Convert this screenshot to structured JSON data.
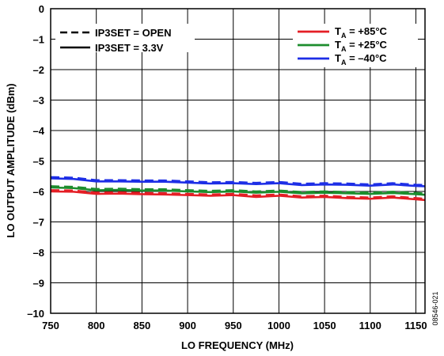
{
  "chart_data": {
    "type": "line",
    "title": "",
    "xlabel": "LO FREQUENCY (MHz)",
    "ylabel": "LO OUTPUT AMPLITUDE (dBm)",
    "xlim": [
      750,
      1160
    ],
    "ylim": [
      -10,
      0
    ],
    "x_ticks": [
      750,
      800,
      850,
      900,
      950,
      1000,
      1050,
      1100,
      1150
    ],
    "y_ticks": [
      0,
      -1,
      -2,
      -3,
      -4,
      -5,
      -6,
      -7,
      -8,
      -9,
      -10
    ],
    "x_tick_labels": [
      "750",
      "800",
      "850",
      "900",
      "950",
      "1000",
      "1050",
      "1100",
      "1150"
    ],
    "y_tick_labels": [
      "0",
      "–1",
      "–2",
      "–3",
      "–4",
      "–5",
      "–6",
      "–7",
      "–8",
      "–9",
      "–10"
    ],
    "grid": true,
    "x": [
      750,
      775,
      800,
      825,
      850,
      875,
      900,
      925,
      950,
      975,
      1000,
      1025,
      1050,
      1075,
      1100,
      1125,
      1150,
      1160
    ],
    "series": [
      {
        "name": "+85°C",
        "color": "#e41e25",
        "style": "dashed",
        "values": [
          -5.96,
          -5.97,
          -6.04,
          -6.03,
          -6.05,
          -6.06,
          -6.08,
          -6.1,
          -6.08,
          -6.13,
          -6.1,
          -6.16,
          -6.14,
          -6.18,
          -6.2,
          -6.16,
          -6.22,
          -6.24
        ]
      },
      {
        "name": "+85°C",
        "color": "#e41e25",
        "style": "solid",
        "values": [
          -6.0,
          -6.01,
          -6.08,
          -6.07,
          -6.09,
          -6.1,
          -6.12,
          -6.14,
          -6.12,
          -6.18,
          -6.14,
          -6.2,
          -6.18,
          -6.22,
          -6.24,
          -6.2,
          -6.26,
          -6.28
        ]
      },
      {
        "name": "+25°C",
        "color": "#1c8d2d",
        "style": "dashed",
        "values": [
          -5.83,
          -5.85,
          -5.92,
          -5.91,
          -5.93,
          -5.93,
          -5.96,
          -5.98,
          -5.96,
          -6.0,
          -5.97,
          -6.02,
          -6.0,
          -6.02,
          -6.04,
          -6.01,
          -6.05,
          -6.07
        ]
      },
      {
        "name": "+25°C",
        "color": "#1c8d2d",
        "style": "solid",
        "values": [
          -5.87,
          -5.89,
          -5.96,
          -5.95,
          -5.97,
          -5.97,
          -6.0,
          -6.02,
          -6.0,
          -6.04,
          -6.01,
          -6.06,
          -6.04,
          -6.06,
          -6.08,
          -6.05,
          -6.09,
          -6.11
        ]
      },
      {
        "name": "–40°C",
        "color": "#1d2ee6",
        "style": "dashed",
        "values": [
          -5.53,
          -5.55,
          -5.63,
          -5.63,
          -5.64,
          -5.64,
          -5.67,
          -5.7,
          -5.69,
          -5.72,
          -5.69,
          -5.75,
          -5.73,
          -5.74,
          -5.77,
          -5.73,
          -5.78,
          -5.79
        ]
      },
      {
        "name": "–40°C",
        "color": "#1d2ee6",
        "style": "solid",
        "values": [
          -5.57,
          -5.59,
          -5.67,
          -5.67,
          -5.68,
          -5.68,
          -5.71,
          -5.74,
          -5.73,
          -5.76,
          -5.73,
          -5.79,
          -5.77,
          -5.78,
          -5.81,
          -5.77,
          -5.82,
          -5.83
        ]
      }
    ],
    "legend_left": {
      "placement": "top-left",
      "entries": [
        {
          "style": "dashed",
          "label": "IP3SET = OPEN"
        },
        {
          "style": "solid",
          "label": "IP3SET = 3.3V"
        }
      ]
    },
    "legend_right": {
      "placement": "top-right",
      "entries": [
        {
          "color": "#e41e25",
          "prefix": "T",
          "sub": "A",
          "value": " = +85°C"
        },
        {
          "color": "#1c8d2d",
          "prefix": "T",
          "sub": "A",
          "value": " = +25°C"
        },
        {
          "color": "#1d2ee6",
          "prefix": "T",
          "sub": "A",
          "value": " = –40°C"
        }
      ]
    },
    "figure_code": "08546-021"
  }
}
